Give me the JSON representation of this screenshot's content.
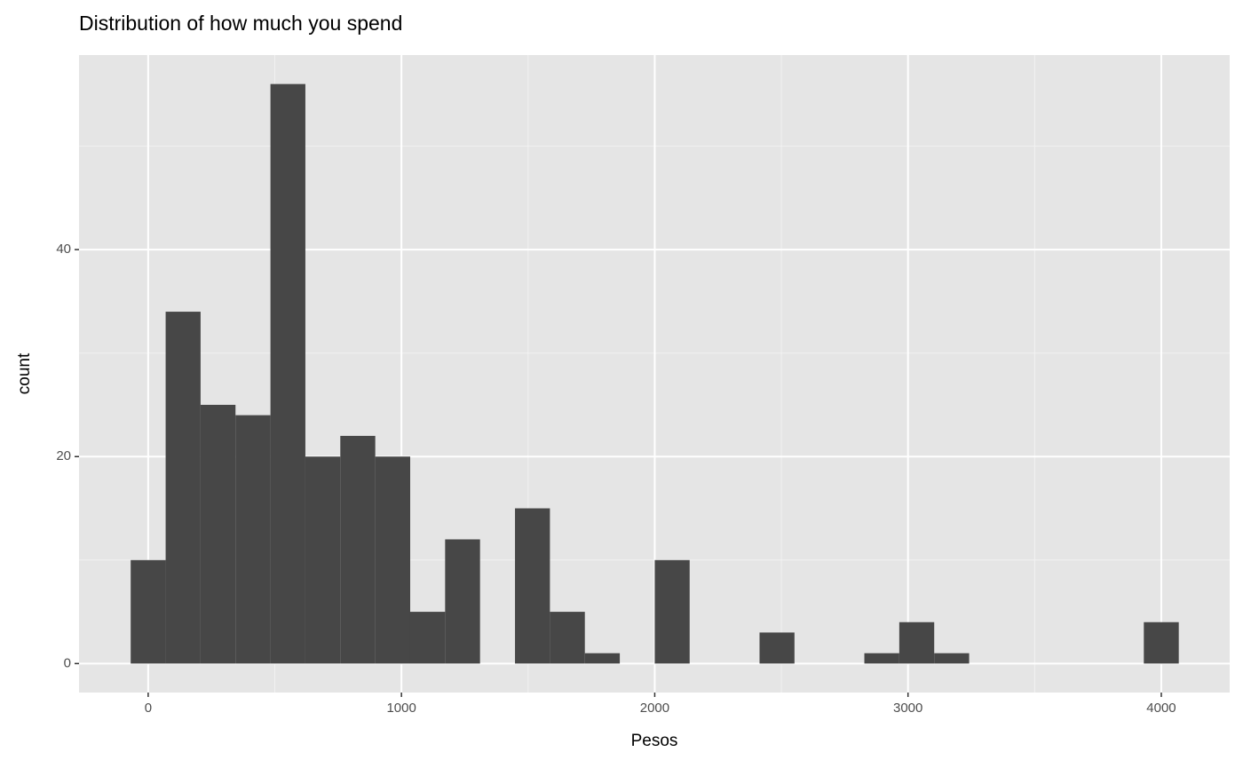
{
  "chart_data": {
    "type": "histogram",
    "title": "Distribution of how much you spend",
    "x_label": "Pesos",
    "y_label": "count",
    "bins": [
      -69.0,
      69.0,
      206.9,
      344.8,
      482.8,
      620.7,
      758.6,
      896.6,
      1034.5,
      1172.4,
      1310.3,
      1448.3,
      1586.2,
      1724.1,
      1862.1,
      2000.0,
      2137.9,
      2275.9,
      2413.8,
      2551.7,
      2689.7,
      2827.6,
      2965.5,
      3103.4,
      3241.4,
      3379.3,
      3517.2,
      3655.2,
      3793.1,
      3931.0,
      4069.0
    ],
    "values": [
      10,
      34,
      25,
      24,
      56,
      20,
      22,
      20,
      5,
      12,
      0,
      15,
      5,
      1,
      0,
      10,
      0,
      0,
      3,
      0,
      0,
      1,
      4,
      1,
      0,
      0,
      0,
      0,
      0,
      4
    ],
    "color": "#474747",
    "xlim": [
      -273,
      4270
    ],
    "ylim": [
      -2.8,
      58.8
    ],
    "xticks": [
      0,
      1000,
      2000,
      3000,
      4000
    ],
    "yticks": [
      0,
      20,
      40
    ],
    "grid": true
  }
}
